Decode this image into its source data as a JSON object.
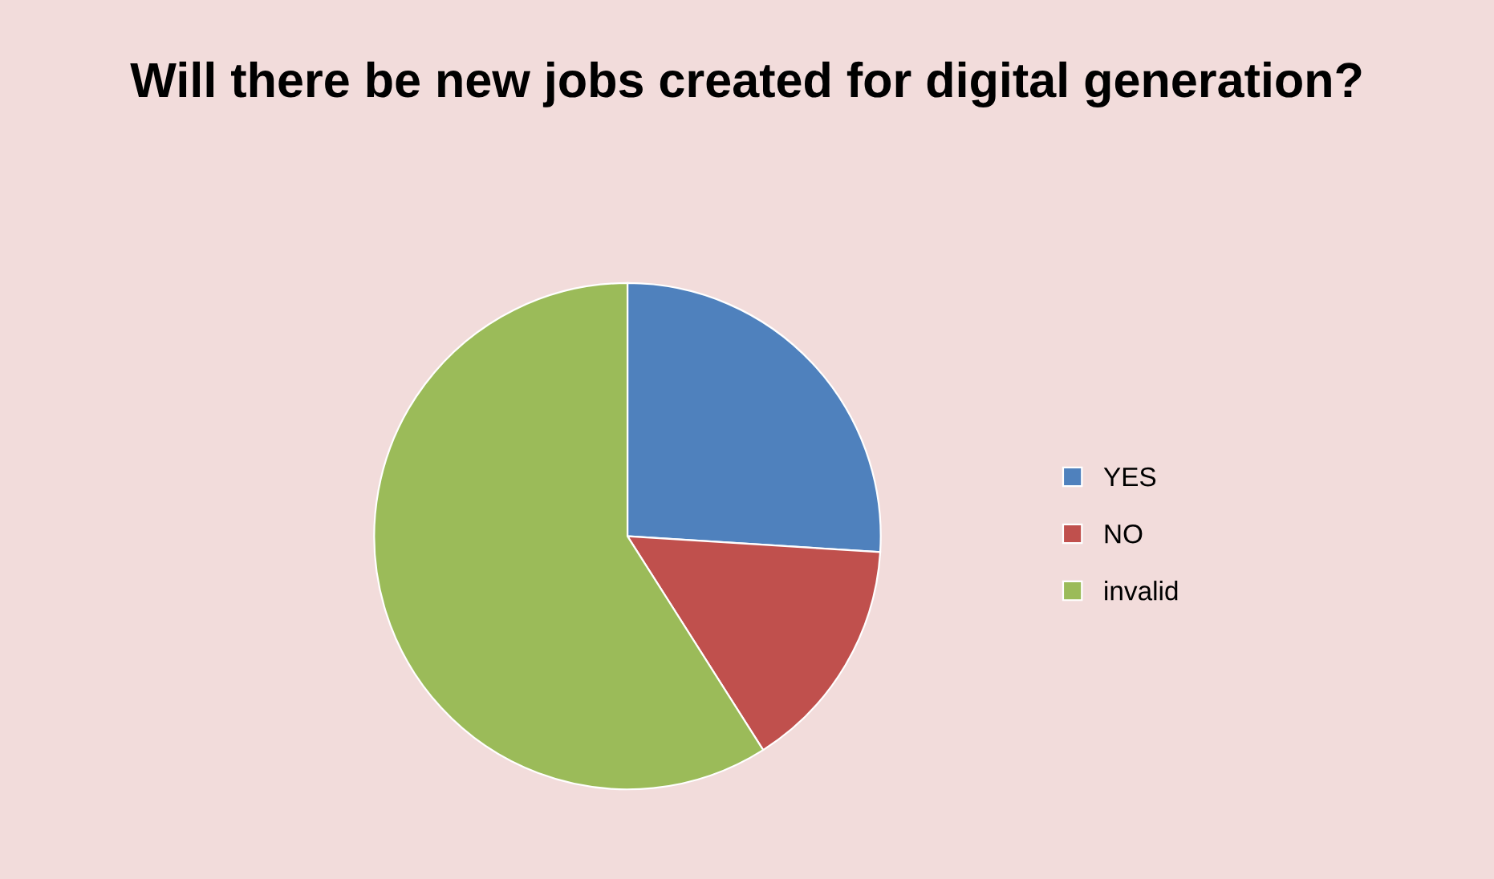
{
  "chart_data": {
    "type": "pie",
    "title": "Will there be new jobs created for digital generation?",
    "categories": [
      "YES",
      "NO",
      "invalid"
    ],
    "values": [
      26,
      15,
      59
    ],
    "colors": [
      "#4f81bd",
      "#c0504d",
      "#9bbb59"
    ],
    "legend": "right"
  }
}
